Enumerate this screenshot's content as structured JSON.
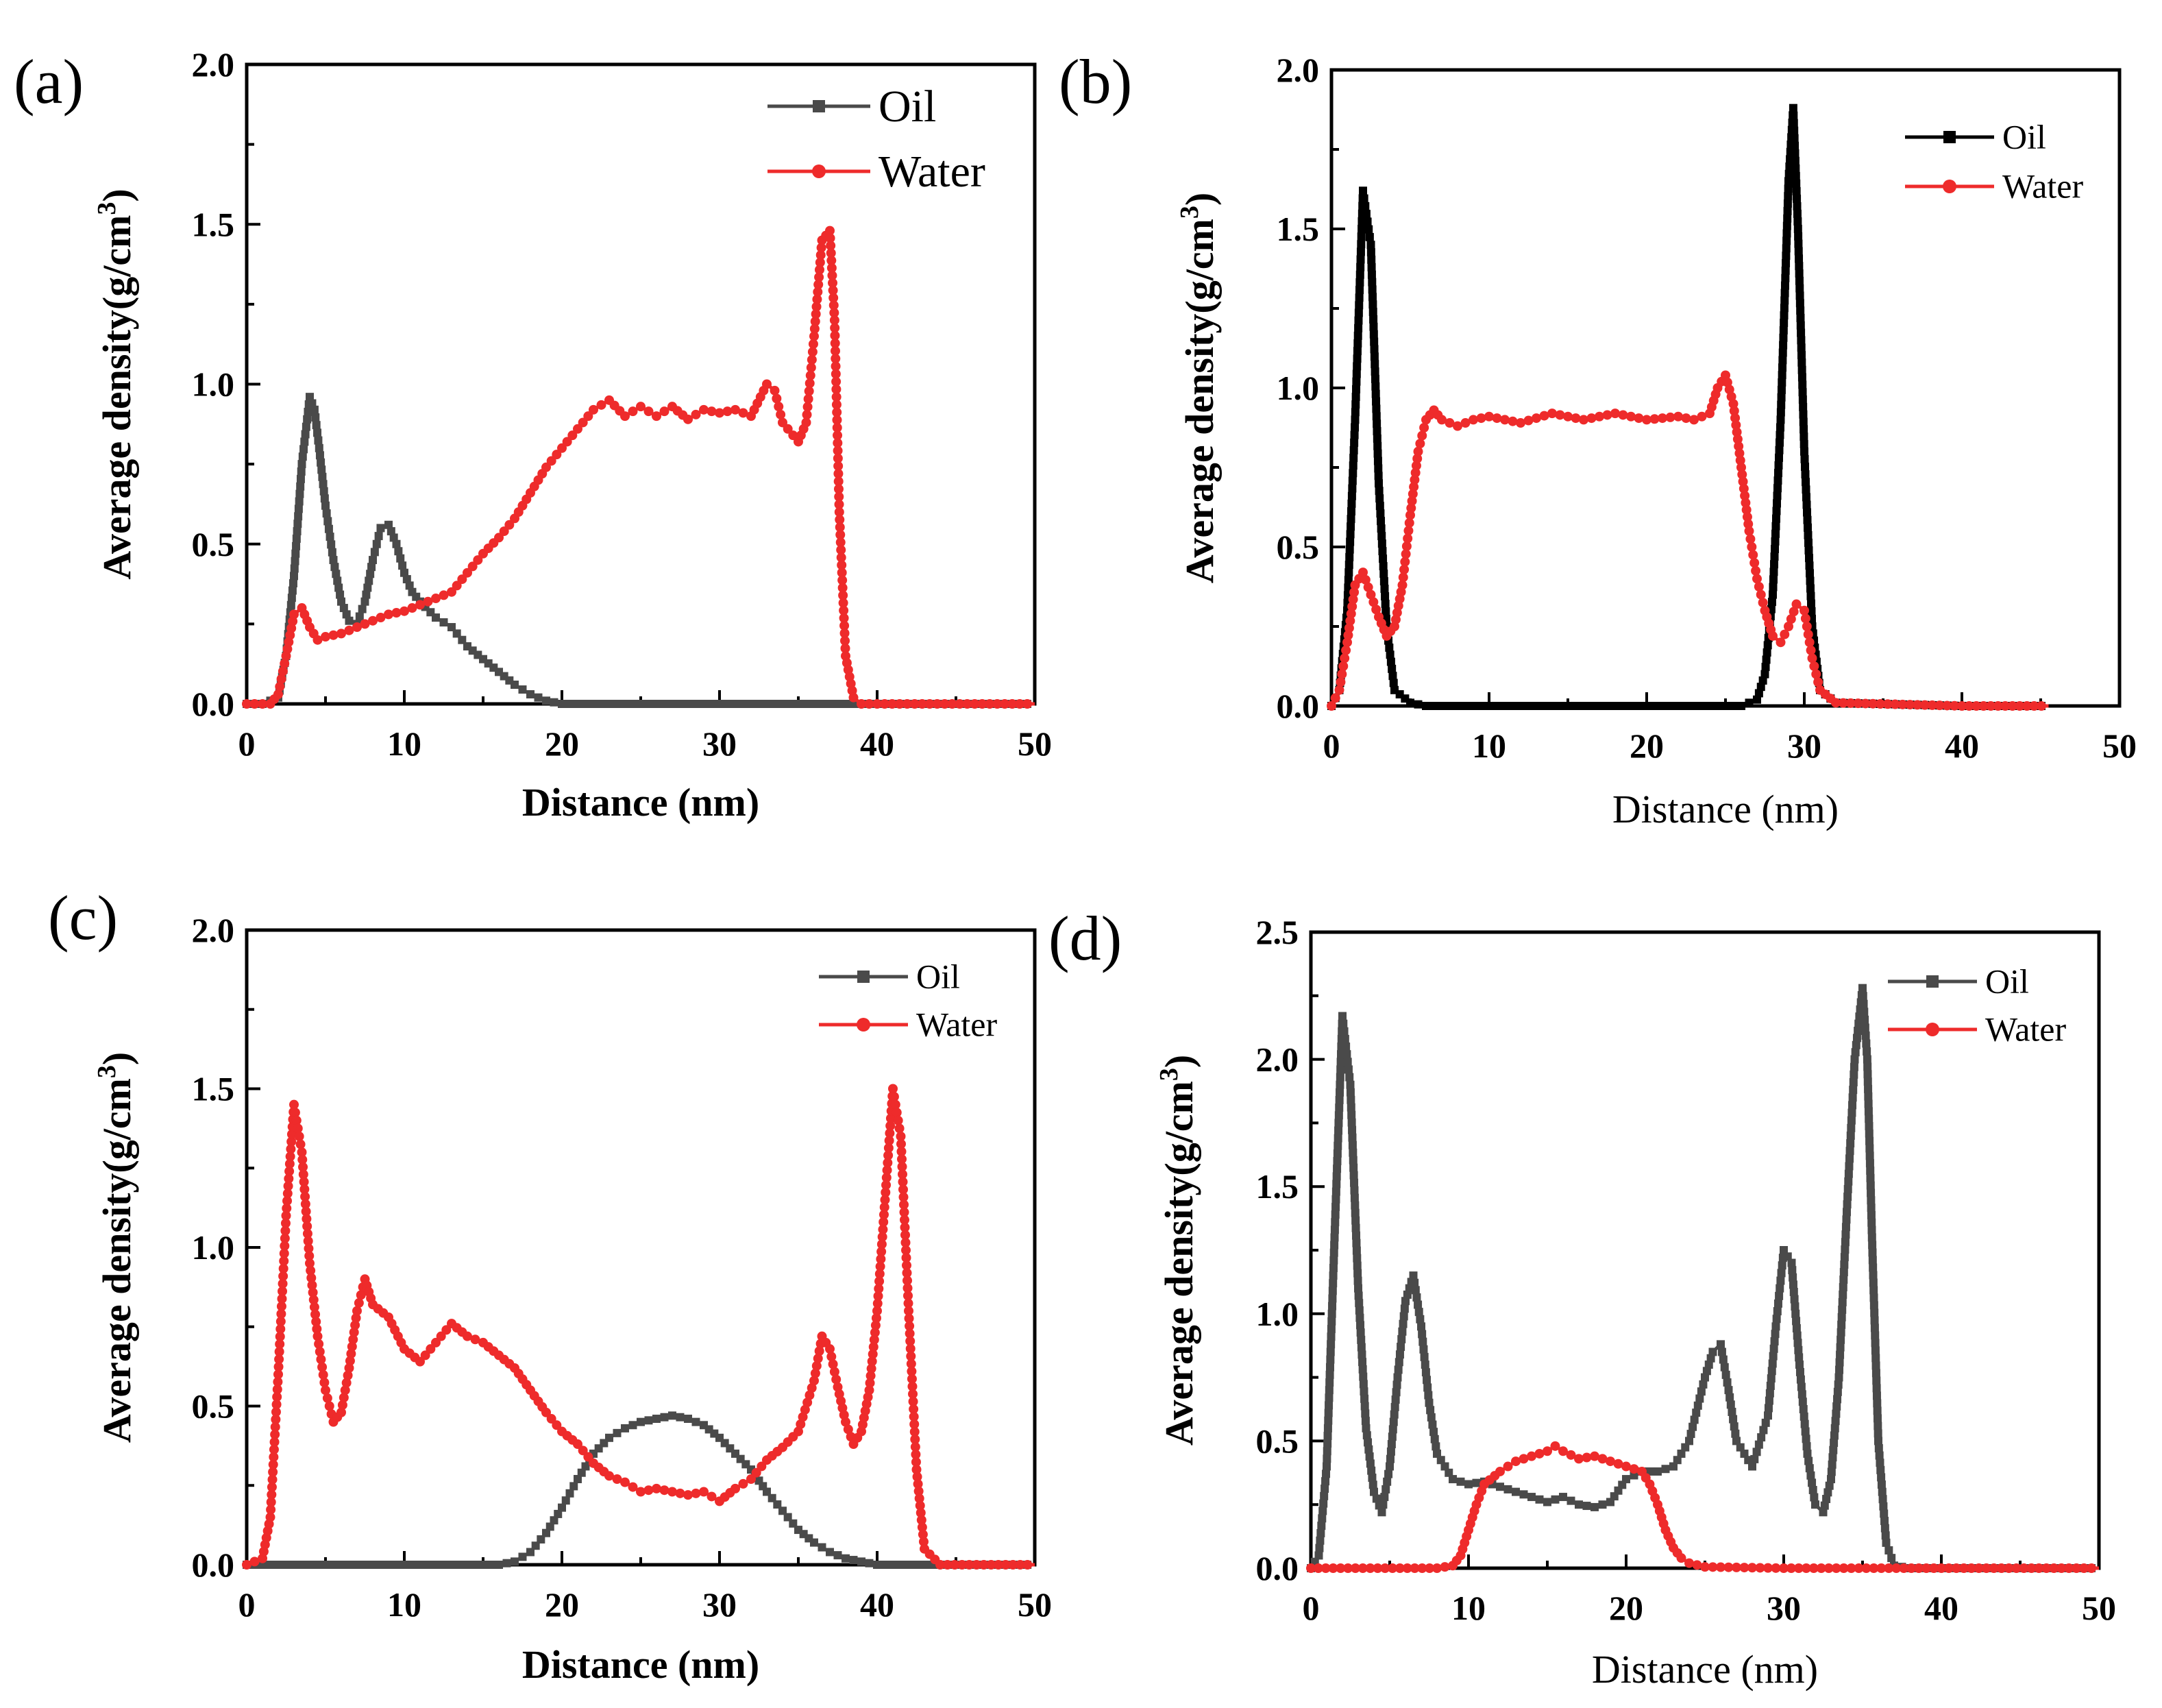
{
  "chart_data": [
    {
      "panel": "(a)",
      "type": "line",
      "xlabel": "Distance (nm)",
      "ylabel": "Average density(g/cm",
      "ylabel_sup": "3",
      "ylabel_close": ")",
      "xlim": [
        0,
        50
      ],
      "ylim": [
        0,
        2.0
      ],
      "xticks": [
        "0",
        "10",
        "20",
        "30",
        "40",
        "50"
      ],
      "yticks": [
        "0.0",
        "0.5",
        "1.0",
        "1.5",
        "2.0"
      ],
      "legend_position": "top-right",
      "series": [
        {
          "name": "Oil",
          "color": "#4a4a4a",
          "marker": "square",
          "x": [
            0,
            1,
            2,
            2.5,
            3,
            3.5,
            4,
            4.3,
            4.6,
            5,
            5.5,
            6,
            6.5,
            7,
            7.5,
            8,
            8.5,
            9,
            9.5,
            10,
            10.5,
            11,
            12,
            13,
            14,
            15,
            16,
            17,
            18,
            19,
            20,
            22,
            25,
            30,
            40,
            50
          ],
          "y": [
            0,
            0,
            0.02,
            0.15,
            0.4,
            0.75,
            0.96,
            0.92,
            0.8,
            0.62,
            0.45,
            0.32,
            0.26,
            0.25,
            0.32,
            0.45,
            0.55,
            0.56,
            0.5,
            0.41,
            0.35,
            0.32,
            0.27,
            0.24,
            0.18,
            0.14,
            0.1,
            0.06,
            0.03,
            0.01,
            0.0,
            0,
            0,
            0,
            0,
            0
          ]
        },
        {
          "name": "Water",
          "color": "#ee2b2b",
          "marker": "circle",
          "x": [
            0,
            1.5,
            2,
            2.5,
            3,
            3.5,
            4,
            4.5,
            5,
            6,
            7,
            8,
            9,
            10,
            11,
            12,
            13,
            14,
            15,
            16,
            17,
            18,
            19,
            20,
            21,
            22,
            23,
            24,
            25,
            26,
            27,
            28,
            29,
            30,
            31,
            32,
            33,
            33.5,
            34,
            35,
            35.5,
            36,
            36.5,
            37,
            37.3,
            37.6,
            38,
            38.5,
            39,
            40,
            50
          ],
          "y": [
            0,
            0,
            0.03,
            0.15,
            0.28,
            0.3,
            0.24,
            0.2,
            0.21,
            0.22,
            0.24,
            0.26,
            0.28,
            0.29,
            0.31,
            0.33,
            0.35,
            0.41,
            0.47,
            0.52,
            0.58,
            0.66,
            0.74,
            0.8,
            0.86,
            0.92,
            0.95,
            0.9,
            0.93,
            0.9,
            0.93,
            0.89,
            0.92,
            0.91,
            0.92,
            0.9,
            1.0,
            0.98,
            0.88,
            0.82,
            0.88,
            1.15,
            1.45,
            1.48,
            1.2,
            0.6,
            0.15,
            0.02,
            0,
            0,
            0
          ]
        }
      ]
    },
    {
      "panel": "(b)",
      "type": "line",
      "xlabel": "Distance (nm)",
      "ylabel": "Average density(g/cm",
      "ylabel_sup": "3",
      "ylabel_close": ")",
      "xlim": [
        0,
        50
      ],
      "ylim": [
        0,
        2.0
      ],
      "xticks": [
        "0",
        "10",
        "20",
        "30",
        "40",
        "50"
      ],
      "yticks": [
        "0.0",
        "0.5",
        "1.0",
        "1.5",
        "2.0"
      ],
      "legend_position": "top-right",
      "series": [
        {
          "name": "Oil",
          "color": "#000000",
          "marker": "square",
          "x": [
            0,
            0.5,
            1,
            1.5,
            2,
            2.5,
            3,
            3.5,
            4,
            5,
            6,
            10,
            20,
            26,
            27,
            27.5,
            28,
            28.5,
            29,
            29.3,
            29.6,
            30,
            30.5,
            31,
            32,
            40,
            45.5
          ],
          "y": [
            0,
            0.05,
            0.3,
            0.9,
            1.62,
            1.45,
            0.7,
            0.25,
            0.05,
            0.01,
            0,
            0,
            0,
            0,
            0.02,
            0.1,
            0.35,
            0.9,
            1.65,
            1.88,
            1.5,
            0.8,
            0.25,
            0.05,
            0.01,
            0,
            0
          ]
        },
        {
          "name": "Water",
          "color": "#ee2b2b",
          "marker": "circle",
          "x": [
            0,
            0.5,
            1,
            1.5,
            2,
            2.5,
            3,
            3.5,
            4,
            4.5,
            5,
            5.5,
            6,
            6.5,
            7,
            8,
            9,
            10,
            12,
            14,
            16,
            18,
            20,
            22,
            23,
            24,
            24.5,
            25,
            25.5,
            26,
            26.5,
            27,
            27.5,
            28,
            28.5,
            29,
            29.5,
            30,
            30.5,
            31,
            32,
            40,
            45.5
          ],
          "y": [
            0,
            0.05,
            0.2,
            0.38,
            0.42,
            0.35,
            0.28,
            0.22,
            0.25,
            0.38,
            0.6,
            0.8,
            0.9,
            0.93,
            0.9,
            0.88,
            0.9,
            0.91,
            0.89,
            0.92,
            0.9,
            0.92,
            0.9,
            0.91,
            0.9,
            0.92,
            1.0,
            1.04,
            0.95,
            0.75,
            0.55,
            0.4,
            0.3,
            0.22,
            0.2,
            0.25,
            0.32,
            0.3,
            0.15,
            0.05,
            0.01,
            0,
            0
          ]
        }
      ]
    },
    {
      "panel": "(c)",
      "type": "line",
      "xlabel": "Distance (nm)",
      "ylabel": "Average density(g/cm",
      "ylabel_sup": "3",
      "ylabel_close": ")",
      "xlim": [
        0,
        50
      ],
      "ylim": [
        0,
        2.0
      ],
      "xticks": [
        "0",
        "10",
        "20",
        "30",
        "40",
        "50"
      ],
      "yticks": [
        "0.0",
        "0.5",
        "1.0",
        "1.5",
        "2.0"
      ],
      "legend_position": "top-right",
      "series": [
        {
          "name": "Oil",
          "color": "#4a4a4a",
          "marker": "square",
          "x": [
            0,
            10,
            16,
            17,
            18,
            19,
            20,
            21,
            22,
            23,
            24,
            25,
            26,
            27,
            28,
            29,
            30,
            31,
            32,
            33,
            34,
            35,
            36,
            37,
            38,
            39,
            40,
            42,
            50
          ],
          "y": [
            0,
            0,
            0,
            0.01,
            0.04,
            0.1,
            0.18,
            0.27,
            0.35,
            0.4,
            0.43,
            0.45,
            0.46,
            0.47,
            0.46,
            0.44,
            0.4,
            0.35,
            0.3,
            0.23,
            0.17,
            0.11,
            0.07,
            0.04,
            0.02,
            0.01,
            0,
            0,
            0
          ]
        },
        {
          "name": "Water",
          "color": "#ee2b2b",
          "marker": "circle",
          "x": [
            0,
            1,
            1.5,
            2,
            2.5,
            3,
            3.5,
            4,
            4.5,
            5,
            5.5,
            6,
            6.5,
            7,
            7.5,
            8,
            9,
            10,
            11,
            12,
            13,
            14,
            15,
            16,
            17,
            18,
            19,
            20,
            21,
            22,
            23,
            24,
            25,
            26,
            27,
            28,
            29,
            30,
            31,
            32,
            33,
            34,
            35,
            36,
            36.5,
            37,
            37.5,
            38,
            38.5,
            39,
            39.5,
            40,
            40.5,
            41,
            41.5,
            42,
            42.5,
            43,
            44,
            50
          ],
          "y": [
            0,
            0.02,
            0.15,
            0.6,
            1.1,
            1.45,
            1.3,
            0.95,
            0.72,
            0.55,
            0.45,
            0.48,
            0.62,
            0.8,
            0.9,
            0.82,
            0.78,
            0.68,
            0.64,
            0.7,
            0.76,
            0.72,
            0.7,
            0.66,
            0.62,
            0.55,
            0.48,
            0.42,
            0.38,
            0.32,
            0.28,
            0.26,
            0.23,
            0.24,
            0.23,
            0.22,
            0.23,
            0.2,
            0.24,
            0.27,
            0.33,
            0.37,
            0.42,
            0.58,
            0.72,
            0.68,
            0.56,
            0.45,
            0.38,
            0.42,
            0.55,
            0.8,
            1.15,
            1.5,
            1.35,
            0.8,
            0.3,
            0.05,
            0,
            0
          ]
        }
      ]
    },
    {
      "panel": "(d)",
      "type": "line",
      "xlabel": "Distance (nm)",
      "ylabel": "Average density(g/cm",
      "ylabel_sup": "3",
      "ylabel_close": ")",
      "xlim": [
        0,
        50
      ],
      "ylim": [
        0,
        2.5
      ],
      "xticks": [
        "0",
        "10",
        "20",
        "30",
        "40",
        "50"
      ],
      "yticks": [
        "0.0",
        "0.5",
        "1.0",
        "1.5",
        "2.0",
        "2.5"
      ],
      "legend_position": "top-right",
      "series": [
        {
          "name": "Oil",
          "color": "#4a4a4a",
          "marker": "square",
          "x": [
            0,
            0.5,
            1,
            1.5,
            2,
            2.5,
            3,
            3.5,
            4,
            4.5,
            5,
            5.5,
            6,
            6.5,
            7,
            7.5,
            8,
            9,
            10,
            11,
            12,
            13,
            14,
            15,
            16,
            17,
            18,
            19,
            20,
            21,
            22,
            23,
            24,
            25,
            25.5,
            26,
            26.5,
            27,
            28,
            29,
            29.5,
            30,
            30.5,
            31,
            31.5,
            32,
            32.5,
            33,
            33.5,
            34,
            34.5,
            35,
            35.3,
            35.6,
            36,
            36.5,
            37,
            38,
            40,
            50
          ],
          "y": [
            0,
            0.05,
            0.4,
            1.3,
            2.17,
            1.9,
            1.1,
            0.55,
            0.3,
            0.22,
            0.4,
            0.75,
            1.05,
            1.15,
            0.95,
            0.65,
            0.45,
            0.35,
            0.33,
            0.34,
            0.32,
            0.3,
            0.28,
            0.26,
            0.28,
            0.25,
            0.24,
            0.26,
            0.35,
            0.38,
            0.38,
            0.4,
            0.5,
            0.75,
            0.85,
            0.88,
            0.7,
            0.5,
            0.4,
            0.6,
            0.95,
            1.25,
            1.2,
            0.8,
            0.45,
            0.25,
            0.22,
            0.35,
            0.75,
            1.4,
            2.0,
            2.28,
            2.0,
            1.3,
            0.5,
            0.1,
            0.01,
            0,
            0,
            0
          ]
        },
        {
          "name": "Water",
          "color": "#ee2b2b",
          "marker": "circle",
          "x": [
            0,
            8,
            9,
            9.5,
            10,
            10.5,
            11,
            12,
            13,
            14,
            15,
            15.5,
            16,
            17,
            18,
            19,
            20,
            21,
            21.5,
            22,
            22.5,
            23,
            23.5,
            24,
            25,
            30,
            50
          ],
          "y": [
            0,
            0,
            0.01,
            0.05,
            0.15,
            0.25,
            0.33,
            0.38,
            0.42,
            0.44,
            0.46,
            0.48,
            0.46,
            0.43,
            0.44,
            0.42,
            0.4,
            0.38,
            0.33,
            0.25,
            0.15,
            0.08,
            0.04,
            0.02,
            0.005,
            0,
            0
          ]
        }
      ]
    }
  ]
}
